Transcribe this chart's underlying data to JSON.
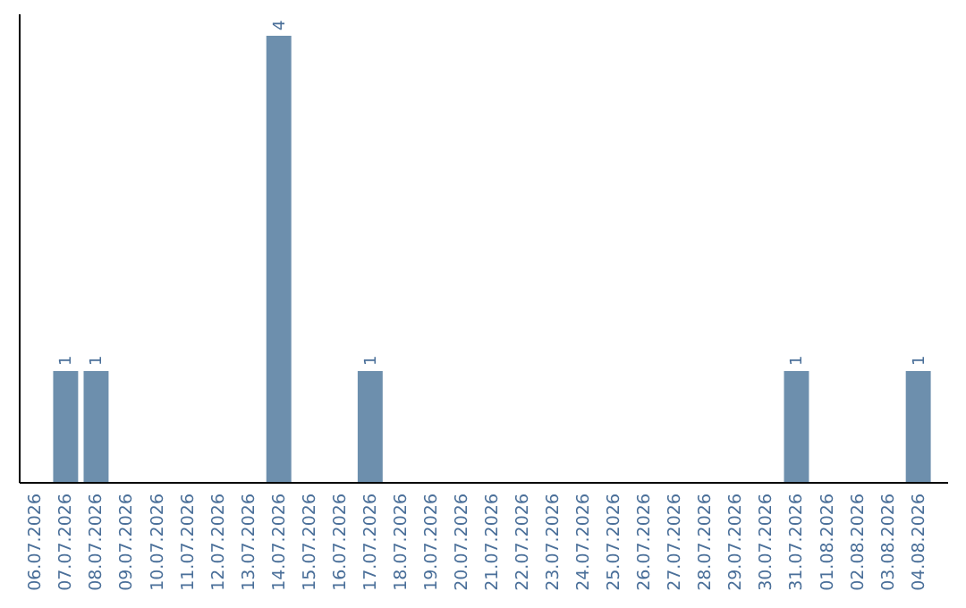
{
  "chart_data": {
    "type": "bar",
    "categories": [
      "06.07.2026",
      "07.07.2026",
      "08.07.2026",
      "09.07.2026",
      "10.07.2026",
      "11.07.2026",
      "12.07.2026",
      "13.07.2026",
      "14.07.2026",
      "15.07.2026",
      "16.07.2026",
      "17.07.2026",
      "18.07.2026",
      "19.07.2026",
      "20.07.2026",
      "21.07.2026",
      "22.07.2026",
      "23.07.2026",
      "24.07.2026",
      "25.07.2026",
      "26.07.2026",
      "27.07.2026",
      "28.07.2026",
      "29.07.2026",
      "30.07.2026",
      "31.07.2026",
      "01.08.2026",
      "02.08.2026",
      "03.08.2026",
      "04.08.2026"
    ],
    "values": [
      0,
      1,
      1,
      0,
      0,
      0,
      0,
      0,
      4,
      0,
      0,
      1,
      0,
      0,
      0,
      0,
      0,
      0,
      0,
      0,
      0,
      0,
      0,
      0,
      0,
      1,
      0,
      0,
      0,
      1
    ],
    "value_labels": [
      null,
      "1",
      "1",
      null,
      null,
      null,
      null,
      null,
      "4",
      null,
      null,
      "1",
      null,
      null,
      null,
      null,
      null,
      null,
      null,
      null,
      null,
      null,
      null,
      null,
      null,
      "1",
      null,
      null,
      null,
      "1"
    ],
    "color": "#6d8fad",
    "tick_labels": "x"
  }
}
